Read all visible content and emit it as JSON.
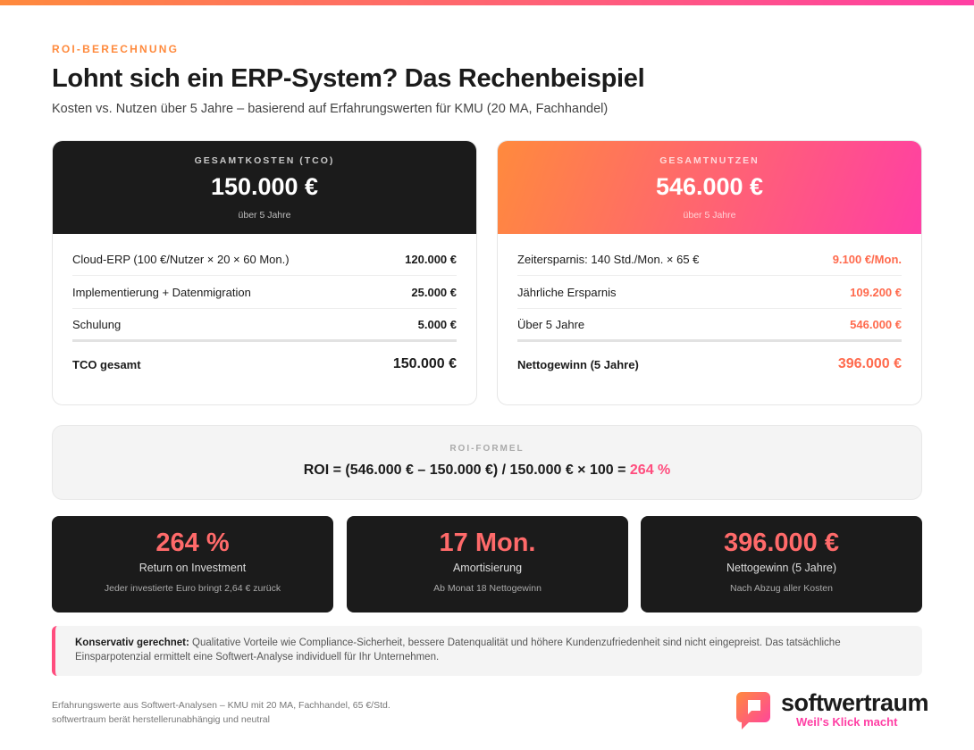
{
  "header": {
    "eyebrow": "ROI-BERECHNUNG",
    "title": "Lohnt sich ein ERP-System? Das Rechenbeispiel",
    "subtitle": "Kosten vs. Nutzen über 5 Jahre – basierend auf Erfahrungswerten für KMU (20 MA, Fachhandel)"
  },
  "costs": {
    "label": "GESAMTKOSTEN (TCO)",
    "amount": "150.000 €",
    "period": "über 5 Jahre",
    "rows": [
      [
        "Cloud-ERP (100 €/Nutzer × 20 × 60 Mon.)",
        "120.000 €"
      ],
      [
        "Implementierung + Datenmigration",
        "25.000 €"
      ],
      [
        "Schulung",
        "5.000 €"
      ]
    ],
    "total": [
      "TCO gesamt",
      "150.000 €"
    ]
  },
  "benefits": {
    "label": "GESAMTNUTZEN",
    "amount": "546.000 €",
    "period": "über 5 Jahre",
    "rows": [
      [
        "Zeitersparnis: 140 Std./Mon. × 65 €",
        "9.100 €/Mon."
      ],
      [
        "Jährliche Ersparnis",
        "109.200 €"
      ],
      [
        "Über 5 Jahre",
        "546.000 €"
      ]
    ],
    "total": [
      "Nettogewinn (5 Jahre)",
      "396.000 €"
    ]
  },
  "formula": {
    "label": "ROI-FORMEL",
    "expression": "ROI = (546.000 € – 150.000 €) / 150.000 € × 100 =",
    "result": "264 %"
  },
  "kpis": [
    {
      "value": "264 %",
      "label": "Return on Investment",
      "note": "Jeder investierte Euro bringt 2,64 € zurück"
    },
    {
      "value": "17 Mon.",
      "label": "Amortisierung",
      "note": "Ab Monat 18 Nettogewinn"
    },
    {
      "value": "396.000 €",
      "label": "Nettogewinn (5 Jahre)",
      "note": "Nach Abzug aller Kosten"
    }
  ],
  "note": {
    "strong": "Konservativ gerechnet:",
    "text": "Qualitative Vorteile wie Compliance-Sicherheit, bessere Datenqualität und höhere Kundenzufriedenheit sind nicht eingepreist. Das tatsächliche Einsparpotenzial ermittelt eine Softwert-Analyse individuell für Ihr Unternehmen."
  },
  "footer": {
    "lines": [
      "Erfahrungswerte aus Softwert-Analysen – KMU mit 20 MA, Fachhandel, 65 €/Std.",
      "softwertraum berät herstellerunabhängig und neutral"
    ],
    "brand": "softwertraum",
    "tagline": "Weil's Klick macht"
  }
}
